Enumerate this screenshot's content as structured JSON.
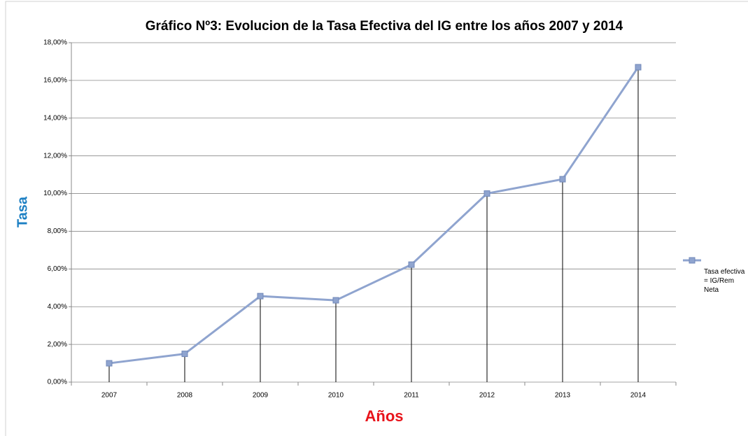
{
  "chart_data": {
    "type": "line",
    "title": "Gráfico Nº3: Evolucion de la Tasa Efectiva del IG entre los años 2007 y 2014",
    "x_label": "Años",
    "y_label": "Tasa",
    "categories": [
      "2007",
      "2008",
      "2009",
      "2010",
      "2011",
      "2012",
      "2013",
      "2014"
    ],
    "series": [
      {
        "name": "Tasa efectiva = IG/Rem Neta",
        "color": "#8fa4cf",
        "values": [
          1.0,
          1.5,
          4.56,
          4.34,
          6.23,
          10.0,
          10.76,
          16.7
        ]
      }
    ],
    "ylim": [
      0,
      18
    ],
    "yticks": [
      {
        "value": 0,
        "label": "0,00%"
      },
      {
        "value": 2,
        "label": "2,00%"
      },
      {
        "value": 4,
        "label": "4,00%"
      },
      {
        "value": 6,
        "label": "6,00%"
      },
      {
        "value": 8,
        "label": "8,00%"
      },
      {
        "value": 10,
        "label": "10,00%"
      },
      {
        "value": 12,
        "label": "12,00%"
      },
      {
        "value": 14,
        "label": "14,00%"
      },
      {
        "value": 16,
        "label": "16,00%"
      },
      {
        "value": 18,
        "label": "18,00%"
      }
    ],
    "grid": true,
    "drop_lines": true,
    "legend": "right"
  }
}
